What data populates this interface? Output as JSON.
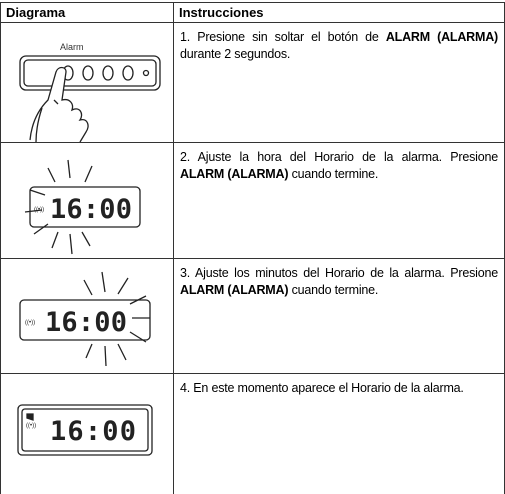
{
  "header": {
    "diagram": "Diagrama",
    "instructions": "Instrucciones"
  },
  "diagrams": [
    {
      "label": "Alarm"
    },
    {
      "display": "16:00"
    },
    {
      "display": "16:00"
    },
    {
      "display": "16:00"
    }
  ],
  "steps": [
    {
      "before": "1. Presione sin soltar el botón de ",
      "bold": "ALARM (ALARMA)",
      "after": " durante 2 segundos."
    },
    {
      "before": "2. Ajuste la hora del Horario de la alarma. Presione ",
      "bold": "ALARM (ALARMA)",
      "after": " cuando termine."
    },
    {
      "before": "3. Ajuste los minutos del Horario de la alarma. Presione ",
      "bold": "ALARM (ALARMA)",
      "after": " cuando termine."
    },
    {
      "before": "4. En este momento aparece el Horario de la alarma."
    }
  ]
}
